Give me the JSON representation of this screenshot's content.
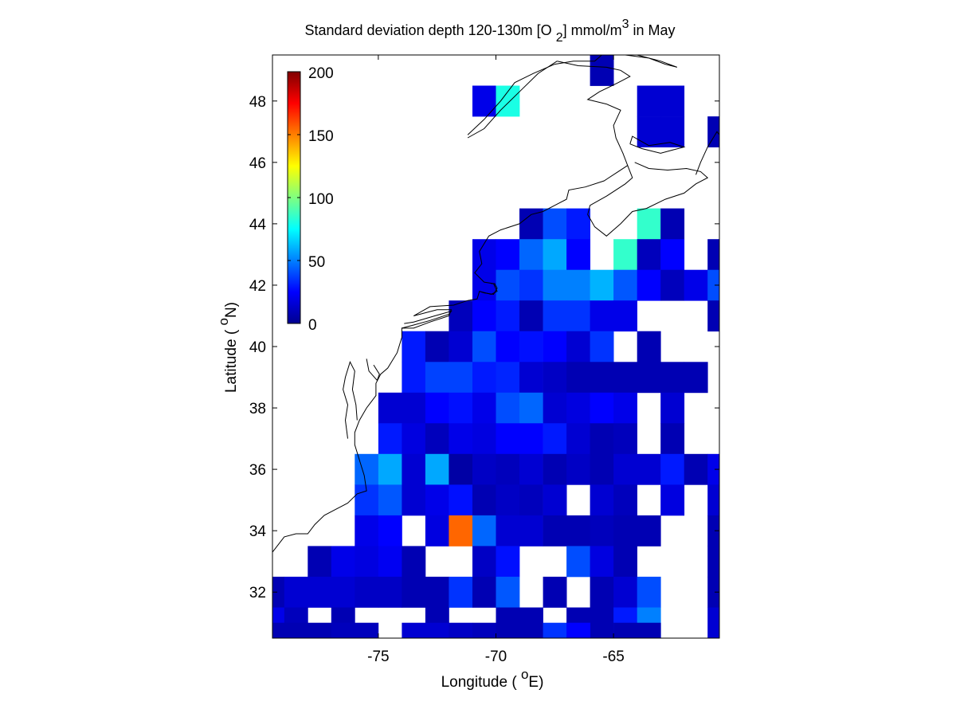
{
  "chart_data": {
    "type": "heatmap",
    "title": {
      "main": "Standard deviation depth 120-130m [O",
      "sub": "2",
      "mid": "] mmol/m",
      "sup": "3",
      "end": " in May"
    },
    "xlabel": {
      "pre": "Longitude ( ",
      "sup": "o",
      "post": "E)"
    },
    "ylabel": {
      "pre": "Latitude ( ",
      "sup": "o",
      "post": "N)"
    },
    "xlim": [
      -79.5,
      -60.5
    ],
    "ylim": [
      30.5,
      49.5
    ],
    "xticks": [
      -75,
      -70,
      -65
    ],
    "yticks": [
      32,
      34,
      36,
      38,
      40,
      42,
      44,
      46,
      48
    ],
    "colorbar": {
      "range": [
        0,
        200
      ],
      "ticks": [
        0,
        50,
        100,
        150,
        200
      ],
      "colormap": "jet",
      "placement": "top-left"
    },
    "grid_cell_size_deg": 1,
    "cells": [
      [
        -65.5,
        49,
        8
      ],
      [
        -70.5,
        48,
        20
      ],
      [
        -69.5,
        48,
        80
      ],
      [
        -63.5,
        48,
        15
      ],
      [
        -62.5,
        48,
        15
      ],
      [
        -63.5,
        47,
        15
      ],
      [
        -62.5,
        47,
        15
      ],
      [
        -60.5,
        47,
        8
      ],
      [
        -68.5,
        44,
        8
      ],
      [
        -67.5,
        44,
        40
      ],
      [
        -66.5,
        44,
        30
      ],
      [
        -63.5,
        44,
        85
      ],
      [
        -62.5,
        44,
        8
      ],
      [
        -70.5,
        43,
        20
      ],
      [
        -69.5,
        43,
        25
      ],
      [
        -68.5,
        43,
        45
      ],
      [
        -67.5,
        43,
        58
      ],
      [
        -66.5,
        43,
        25
      ],
      [
        -64.5,
        43,
        85
      ],
      [
        -63.5,
        43,
        10
      ],
      [
        -62.5,
        43,
        25
      ],
      [
        -60.5,
        43,
        8
      ],
      [
        -70.5,
        42,
        20
      ],
      [
        -69.5,
        42,
        40
      ],
      [
        -68.5,
        42,
        35
      ],
      [
        -67.5,
        42,
        50
      ],
      [
        -66.5,
        42,
        50
      ],
      [
        -65.5,
        42,
        60
      ],
      [
        -64.5,
        42,
        42
      ],
      [
        -63.5,
        42,
        25
      ],
      [
        -62.5,
        42,
        10
      ],
      [
        -61.5,
        42,
        20
      ],
      [
        -60.5,
        42,
        40
      ],
      [
        -71.5,
        41,
        10
      ],
      [
        -70.5,
        41,
        25
      ],
      [
        -69.5,
        41,
        30
      ],
      [
        -68.5,
        41,
        8
      ],
      [
        -67.5,
        41,
        35
      ],
      [
        -66.5,
        41,
        35
      ],
      [
        -65.5,
        41,
        20
      ],
      [
        -64.5,
        41,
        20
      ],
      [
        -60.5,
        41,
        8
      ],
      [
        -73.5,
        40,
        30
      ],
      [
        -72.5,
        40,
        8
      ],
      [
        -71.5,
        40,
        15
      ],
      [
        -70.5,
        40,
        40
      ],
      [
        -69.5,
        40,
        25
      ],
      [
        -68.5,
        40,
        28
      ],
      [
        -67.5,
        40,
        25
      ],
      [
        -66.5,
        40,
        15
      ],
      [
        -65.5,
        40,
        35
      ],
      [
        -63.5,
        40,
        8
      ],
      [
        -73.5,
        39,
        30
      ],
      [
        -72.5,
        39,
        38
      ],
      [
        -71.5,
        39,
        38
      ],
      [
        -70.5,
        39,
        30
      ],
      [
        -69.5,
        39,
        32
      ],
      [
        -68.5,
        39,
        15
      ],
      [
        -67.5,
        39,
        12
      ],
      [
        -66.5,
        39,
        8
      ],
      [
        -65.5,
        39,
        8
      ],
      [
        -64.5,
        39,
        8
      ],
      [
        -63.5,
        39,
        8
      ],
      [
        -62.5,
        39,
        8
      ],
      [
        -61.5,
        39,
        8
      ],
      [
        -74.5,
        38,
        15
      ],
      [
        -73.5,
        38,
        15
      ],
      [
        -72.5,
        38,
        25
      ],
      [
        -71.5,
        38,
        28
      ],
      [
        -70.5,
        38,
        20
      ],
      [
        -69.5,
        38,
        40
      ],
      [
        -68.5,
        38,
        45
      ],
      [
        -67.5,
        38,
        15
      ],
      [
        -66.5,
        38,
        18
      ],
      [
        -65.5,
        38,
        25
      ],
      [
        -64.5,
        38,
        20
      ],
      [
        -62.5,
        38,
        15
      ],
      [
        -74.5,
        37,
        30
      ],
      [
        -73.5,
        37,
        18
      ],
      [
        -72.5,
        37,
        10
      ],
      [
        -71.5,
        37,
        20
      ],
      [
        -70.5,
        37,
        18
      ],
      [
        -69.5,
        37,
        25
      ],
      [
        -68.5,
        37,
        25
      ],
      [
        -67.5,
        37,
        30
      ],
      [
        -66.5,
        37,
        15
      ],
      [
        -65.5,
        37,
        8
      ],
      [
        -64.5,
        37,
        10
      ],
      [
        -62.5,
        37,
        8
      ],
      [
        -75.5,
        36,
        45
      ],
      [
        -74.5,
        36,
        58
      ],
      [
        -73.5,
        36,
        15
      ],
      [
        -72.5,
        36,
        58
      ],
      [
        -71.5,
        36,
        5
      ],
      [
        -70.5,
        36,
        12
      ],
      [
        -69.5,
        36,
        10
      ],
      [
        -68.5,
        36,
        15
      ],
      [
        -67.5,
        36,
        8
      ],
      [
        -66.5,
        36,
        12
      ],
      [
        -65.5,
        36,
        8
      ],
      [
        -64.5,
        36,
        15
      ],
      [
        -63.5,
        36,
        15
      ],
      [
        -62.5,
        36,
        30
      ],
      [
        -61.5,
        36,
        8
      ],
      [
        -60.5,
        36,
        20
      ],
      [
        -75.5,
        35,
        35
      ],
      [
        -74.5,
        35,
        42
      ],
      [
        -73.5,
        35,
        15
      ],
      [
        -72.5,
        35,
        20
      ],
      [
        -71.5,
        35,
        28
      ],
      [
        -70.5,
        35,
        8
      ],
      [
        -69.5,
        35,
        12
      ],
      [
        -68.5,
        35,
        10
      ],
      [
        -67.5,
        35,
        15
      ],
      [
        -65.5,
        35,
        15
      ],
      [
        -64.5,
        35,
        10
      ],
      [
        -62.5,
        35,
        18
      ],
      [
        -60.5,
        35,
        15
      ],
      [
        -75.5,
        34,
        20
      ],
      [
        -74.5,
        34,
        25
      ],
      [
        -72.5,
        34,
        18
      ],
      [
        -71.5,
        34,
        155
      ],
      [
        -70.5,
        34,
        45
      ],
      [
        -69.5,
        34,
        15
      ],
      [
        -68.5,
        34,
        15
      ],
      [
        -67.5,
        34,
        8
      ],
      [
        -66.5,
        34,
        8
      ],
      [
        -65.5,
        34,
        10
      ],
      [
        -64.5,
        34,
        8
      ],
      [
        -63.5,
        34,
        8
      ],
      [
        -60.5,
        34,
        8
      ],
      [
        -77.5,
        33,
        8
      ],
      [
        -76.5,
        33,
        20
      ],
      [
        -75.5,
        33,
        18
      ],
      [
        -74.5,
        33,
        22
      ],
      [
        -73.5,
        33,
        8
      ],
      [
        -70.5,
        33,
        12
      ],
      [
        -69.5,
        33,
        28
      ],
      [
        -66.5,
        33,
        40
      ],
      [
        -65.5,
        33,
        18
      ],
      [
        -64.5,
        33,
        8
      ],
      [
        -60.5,
        33,
        8
      ],
      [
        -79.5,
        32,
        8
      ],
      [
        -78.5,
        32,
        15
      ],
      [
        -77.5,
        32,
        15
      ],
      [
        -76.5,
        32,
        15
      ],
      [
        -75.5,
        32,
        12
      ],
      [
        -74.5,
        32,
        12
      ],
      [
        -73.5,
        32,
        8
      ],
      [
        -72.5,
        32,
        8
      ],
      [
        -71.5,
        32,
        35
      ],
      [
        -70.5,
        32,
        8
      ],
      [
        -69.5,
        32,
        42
      ],
      [
        -67.5,
        32,
        8
      ],
      [
        -65.5,
        32,
        8
      ],
      [
        -64.5,
        32,
        15
      ],
      [
        -63.5,
        32,
        40
      ],
      [
        -60.5,
        32,
        8
      ],
      [
        -79.5,
        31,
        20
      ],
      [
        -78.5,
        31,
        10
      ],
      [
        -76.5,
        31,
        8
      ],
      [
        -72.5,
        31,
        8
      ],
      [
        -69.5,
        31,
        8
      ],
      [
        -68.5,
        31,
        8
      ],
      [
        -66.5,
        31,
        8
      ],
      [
        -65.5,
        31,
        8
      ],
      [
        -64.5,
        31,
        30
      ],
      [
        -63.5,
        31,
        50
      ],
      [
        -60.5,
        31,
        15
      ],
      [
        -79.5,
        30.5,
        8
      ],
      [
        -78.5,
        30.5,
        8
      ],
      [
        -77.5,
        30.5,
        8
      ],
      [
        -76.5,
        30.5,
        10
      ],
      [
        -75.5,
        30.5,
        10
      ],
      [
        -73.5,
        30.5,
        15
      ],
      [
        -72.5,
        30.5,
        15
      ],
      [
        -71.5,
        30.5,
        12
      ],
      [
        -70.5,
        30.5,
        10
      ],
      [
        -69.5,
        30.5,
        8
      ],
      [
        -68.5,
        30.5,
        8
      ],
      [
        -67.5,
        30.5,
        35
      ],
      [
        -66.5,
        30.5,
        25
      ],
      [
        -64.5,
        30.5,
        8
      ],
      [
        -63.5,
        30.5,
        8
      ]
    ]
  },
  "coastline": {
    "us_east": [
      [
        -79.5,
        33.3
      ],
      [
        -79,
        33.8
      ],
      [
        -78.5,
        33.9
      ],
      [
        -78,
        33.9
      ],
      [
        -77.7,
        34.2
      ],
      [
        -77.3,
        34.5
      ],
      [
        -76.8,
        34.7
      ],
      [
        -76.3,
        34.9
      ],
      [
        -75.9,
        35.2
      ],
      [
        -75.5,
        35.3
      ],
      [
        -75.6,
        35.8
      ],
      [
        -75.8,
        36.3
      ],
      [
        -76,
        36.8
      ],
      [
        -76,
        37.2
      ],
      [
        -75.8,
        37.6
      ],
      [
        -75.5,
        38
      ],
      [
        -75.1,
        38.4
      ],
      [
        -75.1,
        38.8
      ],
      [
        -74.9,
        39.1
      ],
      [
        -74.6,
        39.3
      ],
      [
        -74.2,
        39.8
      ],
      [
        -74,
        40.3
      ],
      [
        -74,
        40.6
      ],
      [
        -73.5,
        40.6
      ],
      [
        -72.8,
        40.8
      ],
      [
        -72,
        41
      ],
      [
        -71.9,
        41.2
      ],
      [
        -72.5,
        41.2
      ],
      [
        -73.5,
        41
      ],
      [
        -72.8,
        41.3
      ],
      [
        -71.8,
        41.35
      ],
      [
        -71.2,
        41.5
      ],
      [
        -70.8,
        41.55
      ],
      [
        -70.7,
        41.8
      ],
      [
        -70.2,
        41.7
      ],
      [
        -69.95,
        41.8
      ],
      [
        -70.1,
        42.05
      ],
      [
        -70.5,
        42.1
      ],
      [
        -70.9,
        42.4
      ],
      [
        -70.6,
        42.7
      ],
      [
        -70.7,
        43.1
      ],
      [
        -70.3,
        43.6
      ],
      [
        -69.8,
        43.8
      ],
      [
        -69,
        44
      ],
      [
        -68.5,
        44.3
      ],
      [
        -68,
        44.4
      ],
      [
        -67.5,
        44.6
      ],
      [
        -67,
        44.8
      ],
      [
        -66.9,
        45.1
      ],
      [
        -66.2,
        45.2
      ],
      [
        -65.4,
        45.4
      ],
      [
        -64.8,
        45.7
      ],
      [
        -64.4,
        45.9
      ]
    ],
    "nova_scotia": [
      [
        -64.4,
        45.9
      ],
      [
        -64.2,
        45.5
      ],
      [
        -64.5,
        45.3
      ],
      [
        -65.3,
        44.9
      ],
      [
        -66,
        44.6
      ],
      [
        -66.1,
        44.3
      ],
      [
        -65.8,
        43.9
      ],
      [
        -65.3,
        43.6
      ],
      [
        -64.7,
        44
      ],
      [
        -64.2,
        44.4
      ],
      [
        -63.6,
        44.5
      ],
      [
        -62.8,
        44.8
      ],
      [
        -62,
        45
      ],
      [
        -61.5,
        45.3
      ],
      [
        -61,
        45.5
      ],
      [
        -61.3,
        45.7
      ],
      [
        -61.9,
        45.8
      ],
      [
        -62.7,
        45.75
      ],
      [
        -63.5,
        45.8
      ],
      [
        -64.1,
        46
      ]
    ],
    "cape_breton": [
      [
        -61.5,
        45.6
      ],
      [
        -61.3,
        46
      ],
      [
        -61,
        46.5
      ],
      [
        -60.6,
        47
      ],
      [
        -60.4,
        46.8
      ],
      [
        -60.2,
        46.3
      ],
      [
        -59.9,
        46
      ]
    ],
    "pei": [
      [
        -64.3,
        46.6
      ],
      [
        -63.8,
        46.45
      ],
      [
        -63,
        46.3
      ],
      [
        -62.5,
        46.4
      ],
      [
        -62,
        46.5
      ],
      [
        -62.6,
        46.65
      ],
      [
        -63.5,
        46.55
      ],
      [
        -64.2,
        46.85
      ],
      [
        -64.3,
        46.6
      ]
    ],
    "gulf_nb": [
      [
        -64.4,
        45.9
      ],
      [
        -64.6,
        46.3
      ],
      [
        -64.9,
        46.8
      ],
      [
        -65,
        47.2
      ],
      [
        -64.7,
        47.7
      ],
      [
        -65.3,
        47.9
      ],
      [
        -66.1,
        48.05
      ],
      [
        -65.6,
        48.3
      ],
      [
        -64.8,
        48.6
      ],
      [
        -64.3,
        48.8
      ],
      [
        -64.7,
        49
      ],
      [
        -65.3,
        49.1
      ],
      [
        -66.5,
        49.15
      ],
      [
        -67.4,
        49.3
      ]
    ],
    "st_lawrence": [
      [
        -67.4,
        49.3
      ],
      [
        -68.2,
        48.9
      ],
      [
        -69,
        48.3
      ],
      [
        -69.8,
        47.7
      ],
      [
        -70.5,
        47.1
      ],
      [
        -71.2,
        46.8
      ]
    ],
    "north_shore": [
      [
        -71.2,
        46.9
      ],
      [
        -70.5,
        47.4
      ],
      [
        -69.8,
        48
      ],
      [
        -69.2,
        48.6
      ],
      [
        -68.4,
        48.9
      ],
      [
        -67.5,
        49.2
      ],
      [
        -66.7,
        49.3
      ],
      [
        -65.8,
        49.3
      ],
      [
        -65.5,
        49.5
      ]
    ],
    "anticosti": [
      [
        -64.5,
        49.5
      ],
      [
        -63.5,
        49.4
      ],
      [
        -62.8,
        49.2
      ],
      [
        -62.3,
        49.1
      ],
      [
        -63,
        49.3
      ],
      [
        -64,
        49.5
      ]
    ],
    "chesapeake": [
      [
        -76.3,
        37
      ],
      [
        -76.4,
        37.6
      ],
      [
        -76.3,
        38.1
      ],
      [
        -76.5,
        38.6
      ],
      [
        -76.4,
        39
      ],
      [
        -76.2,
        39.5
      ],
      [
        -76,
        39.2
      ],
      [
        -76.1,
        38.6
      ],
      [
        -75.95,
        38.1
      ],
      [
        -75.9,
        37.6
      ]
    ],
    "delaware_bay": [
      [
        -75.5,
        39.6
      ],
      [
        -75.4,
        39.2
      ],
      [
        -75.05,
        38.9
      ],
      [
        -74.95,
        39.1
      ],
      [
        -75.2,
        39.4
      ]
    ],
    "long_island": [
      [
        -74,
        40.6
      ],
      [
        -73.5,
        40.7
      ],
      [
        -72.8,
        40.85
      ],
      [
        -72,
        41.05
      ],
      [
        -71.9,
        41.15
      ],
      [
        -72.6,
        41
      ],
      [
        -73.5,
        40.8
      ],
      [
        -73.9,
        40.75
      ]
    ],
    "cape_cod": [
      [
        -70.7,
        41.8
      ],
      [
        -70.5,
        41.75
      ],
      [
        -70.1,
        41.7
      ],
      [
        -69.95,
        41.9
      ],
      [
        -70.05,
        42.05
      ],
      [
        -70.2,
        42.05
      ]
    ]
  }
}
